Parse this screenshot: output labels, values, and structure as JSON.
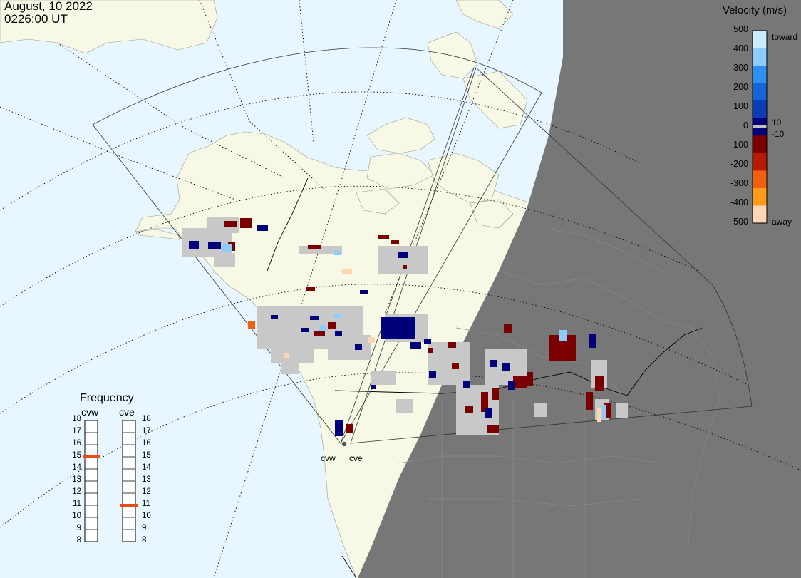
{
  "header": {
    "date": "August, 10 2022",
    "time": "0226:00 UT"
  },
  "legend": {
    "title": "Velocity (m/s)",
    "ticks": [
      "500",
      "400",
      "300",
      "200",
      "100",
      "0",
      "-100",
      "-200",
      "-300",
      "-400",
      "-500"
    ],
    "toward_label": "toward",
    "away_label": "away",
    "pos_threshold": "10",
    "neg_threshold": "-10",
    "colors": [
      "#ffd6b3",
      "#ff9a1a",
      "#f06010",
      "#b81a00",
      "#7a0000",
      "#00007a",
      "#0a3cb4",
      "#1565d8",
      "#2b90f0",
      "#8cccff",
      "#c9ecff"
    ]
  },
  "frequency_panel": {
    "title": "Frequency",
    "radars": [
      {
        "id": "cvw",
        "label": "cvw",
        "frequency_mhz": 15
      },
      {
        "id": "cve",
        "label": "cve",
        "frequency_mhz": 11
      }
    ],
    "scale": [
      "18",
      "17",
      "16",
      "15",
      "14",
      "13",
      "12",
      "11",
      "10",
      "9",
      "8"
    ]
  },
  "sites": {
    "cvw": "cvw",
    "cve": "cve"
  },
  "map": {
    "ocean_color": "#e8f6ff",
    "land_color": "#f8f8e6",
    "night_color": "#777777",
    "ground_scatter_color": "#c8c8c8"
  }
}
